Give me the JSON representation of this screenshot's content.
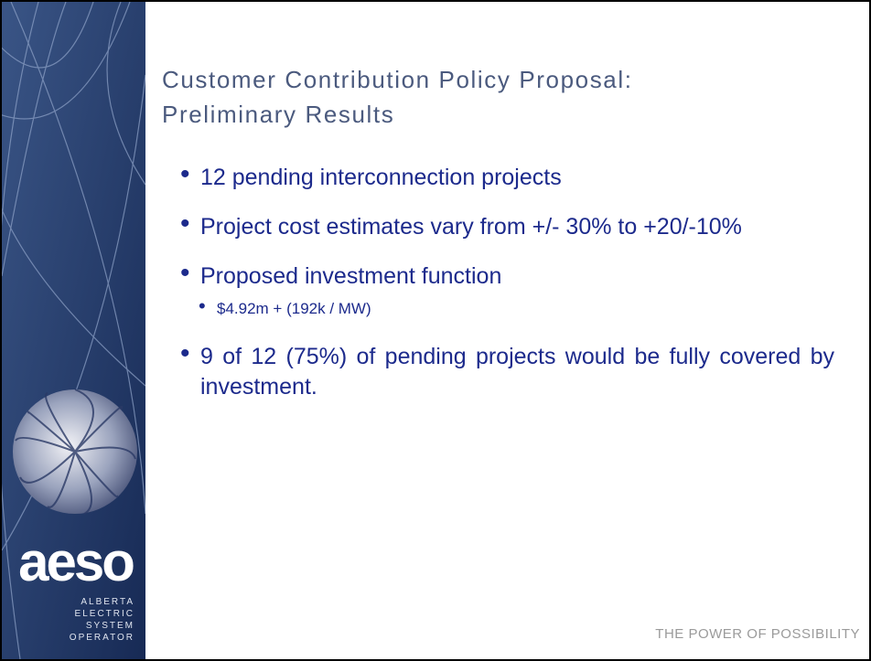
{
  "slide": {
    "title_lines": [
      "Customer Contribution Policy Proposal:",
      "Preliminary Results"
    ],
    "bullets": [
      {
        "level": 1,
        "text": "12 pending interconnection projects"
      },
      {
        "level": 1,
        "text": "Project cost estimates vary from +/- 30% to +20/-10%"
      },
      {
        "level": 1,
        "text": "Proposed investment function"
      },
      {
        "level": 2,
        "text": "$4.92m + (192k / MW)"
      },
      {
        "level": 1,
        "text": "9 of 12 (75%) of pending projects would be fully covered by investment."
      }
    ],
    "footer": "THE POWER OF POSSIBILITY"
  },
  "logo": {
    "wordmark": "aeso",
    "lines": [
      "ALBERTA",
      "ELECTRIC",
      "SYSTEM",
      "OPERATOR"
    ]
  }
}
